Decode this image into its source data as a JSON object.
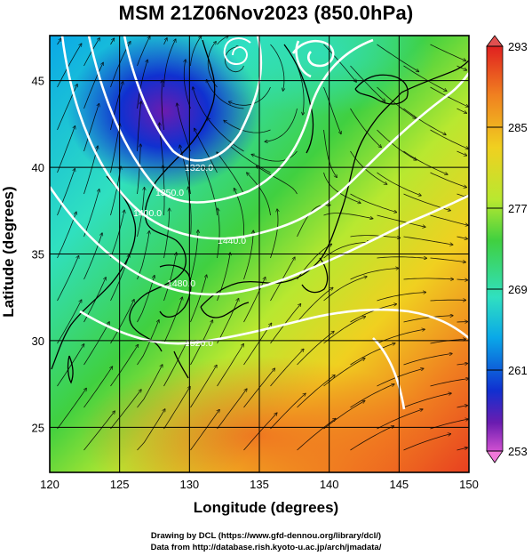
{
  "title": "MSM 21Z06Nov2023 (850.0hPa)",
  "xlabel": "Longitude (degrees)",
  "ylabel": "Latitude  (degrees)",
  "x_ticks": [
    "120",
    "125",
    "130",
    "135",
    "140",
    "145",
    "150"
  ],
  "y_ticks": [
    "25",
    "30",
    "35",
    "40",
    "45"
  ],
  "colorbar": {
    "labels": [
      "293",
      "285",
      "277",
      "269",
      "261",
      "253"
    ],
    "range": [
      253,
      293
    ],
    "colors": [
      "#d050d0",
      "#6a1cb0",
      "#1030d0",
      "#0aa8e8",
      "#30e0c0",
      "#40d040",
      "#b8e830",
      "#f0d020",
      "#f08020",
      "#e02020"
    ]
  },
  "contour_labels": [
    "1320.0",
    "1350.0",
    "1400.0",
    "1440.0",
    "1480.0",
    "1520.0"
  ],
  "credits": [
    "Drawing by DCL (https://www.gfd-dennou.org/library/dcl/)",
    "Data from http://database.rish.kyoto-u.ac.jp/arch/jmadata/"
  ],
  "map_data": {
    "extent": {
      "lon": [
        120,
        150
      ],
      "lat": [
        22.4,
        47.6
      ]
    },
    "variable": "temperature (K) with geopotential height contours and streamlines",
    "level": "850.0hPa"
  }
}
